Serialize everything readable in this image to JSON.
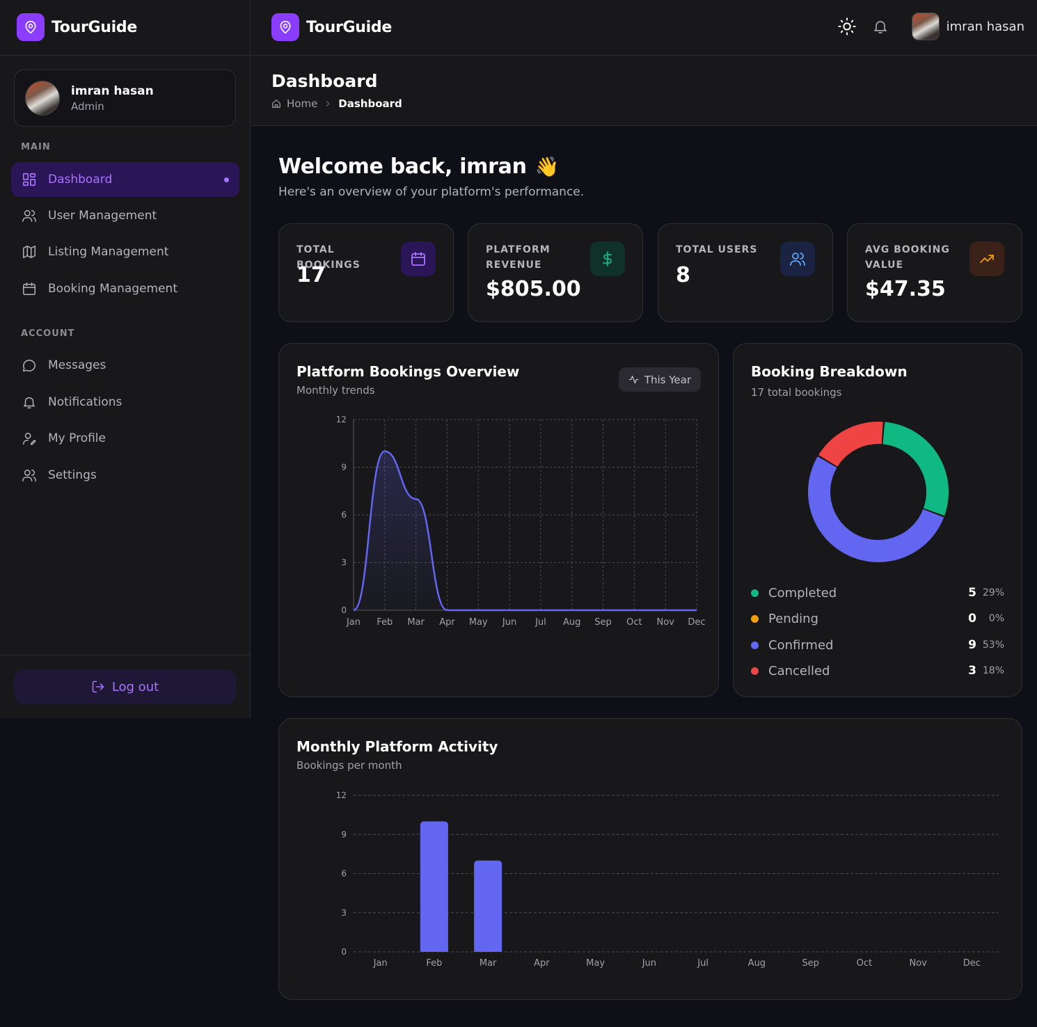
{
  "brand": {
    "name": "TourGuide"
  },
  "user": {
    "name": "imran hasan",
    "role": "Admin"
  },
  "sidebar": {
    "main_label": "MAIN",
    "account_label": "ACCOUNT",
    "items": [
      {
        "label": "Dashboard",
        "icon": "grid-icon",
        "active": true
      },
      {
        "label": "User Management",
        "icon": "users-icon"
      },
      {
        "label": "Listing Management",
        "icon": "map-icon"
      },
      {
        "label": "Booking Management",
        "icon": "calendar-icon"
      },
      {
        "label": "Messages",
        "icon": "message-icon"
      },
      {
        "label": "Notifications",
        "icon": "bell-icon"
      },
      {
        "label": "My Profile",
        "icon": "user-edit-icon"
      },
      {
        "label": "Settings",
        "icon": "settings-users-icon"
      }
    ],
    "logout_label": "Log out"
  },
  "topbar": {
    "theme_icon": "sun-icon",
    "notif_icon": "bell-icon",
    "user_name": "imran hasan"
  },
  "page": {
    "title": "Dashboard",
    "breadcrumb": {
      "home": "Home",
      "current": "Dashboard"
    },
    "welcome": "Welcome back, imran",
    "welcome_emoji": "👋",
    "subtitle": "Here's an overview of your platform's performance."
  },
  "stats": [
    {
      "label": "TOTAL BOOKINGS",
      "value": "17",
      "icon": "calendar-icon",
      "color": "#a974ff"
    },
    {
      "label": "PLATFORM REVENUE",
      "value": "$805.00",
      "icon": "dollar-icon",
      "color": "#10b981"
    },
    {
      "label": "TOTAL USERS",
      "value": "8",
      "icon": "users-icon",
      "color": "#60a5fa"
    },
    {
      "label": "AVG BOOKING VALUE",
      "value": "$47.35",
      "icon": "trending-up-icon",
      "color": "#f59e0b"
    }
  ],
  "overview": {
    "title": "Platform Bookings Overview",
    "subtitle": "Monthly trends",
    "filter_label": "This Year"
  },
  "breakdown": {
    "title": "Booking Breakdown",
    "subtitle": "17 total bookings",
    "items": [
      {
        "label": "Completed",
        "count": "5",
        "pct": "29%",
        "color": "#10b981"
      },
      {
        "label": "Pending",
        "count": "0",
        "pct": "0%",
        "color": "#f59e0b"
      },
      {
        "label": "Confirmed",
        "count": "9",
        "pct": "53%",
        "color": "#6366f1"
      },
      {
        "label": "Cancelled",
        "count": "3",
        "pct": "18%",
        "color": "#ef4444"
      }
    ]
  },
  "activity": {
    "title": "Monthly Platform Activity",
    "subtitle": "Bookings per month"
  },
  "chart_data": [
    {
      "type": "area",
      "categories": [
        "Jan",
        "Feb",
        "Mar",
        "Apr",
        "May",
        "Jun",
        "Jul",
        "Aug",
        "Sep",
        "Oct",
        "Nov",
        "Dec"
      ],
      "values": [
        0,
        10,
        7,
        0,
        0,
        0,
        0,
        0,
        0,
        0,
        0,
        0
      ],
      "ylim": [
        0,
        12
      ],
      "yticks": [
        0,
        3,
        6,
        9,
        12
      ],
      "grid": true,
      "color": "#6366f1"
    },
    {
      "type": "pie",
      "categories": [
        "Completed",
        "Pending",
        "Confirmed",
        "Cancelled"
      ],
      "values": [
        5,
        0,
        9,
        3
      ],
      "colors": [
        "#10b981",
        "#f59e0b",
        "#6366f1",
        "#ef4444"
      ]
    },
    {
      "type": "bar",
      "categories": [
        "Jan",
        "Feb",
        "Mar",
        "Apr",
        "May",
        "Jun",
        "Jul",
        "Aug",
        "Sep",
        "Oct",
        "Nov",
        "Dec"
      ],
      "values": [
        0,
        10,
        7,
        0,
        0,
        0,
        0,
        0,
        0,
        0,
        0,
        0
      ],
      "ylim": [
        0,
        12
      ],
      "yticks": [
        0,
        3,
        6,
        9,
        12
      ],
      "grid": true,
      "color": "#6366f1"
    }
  ]
}
